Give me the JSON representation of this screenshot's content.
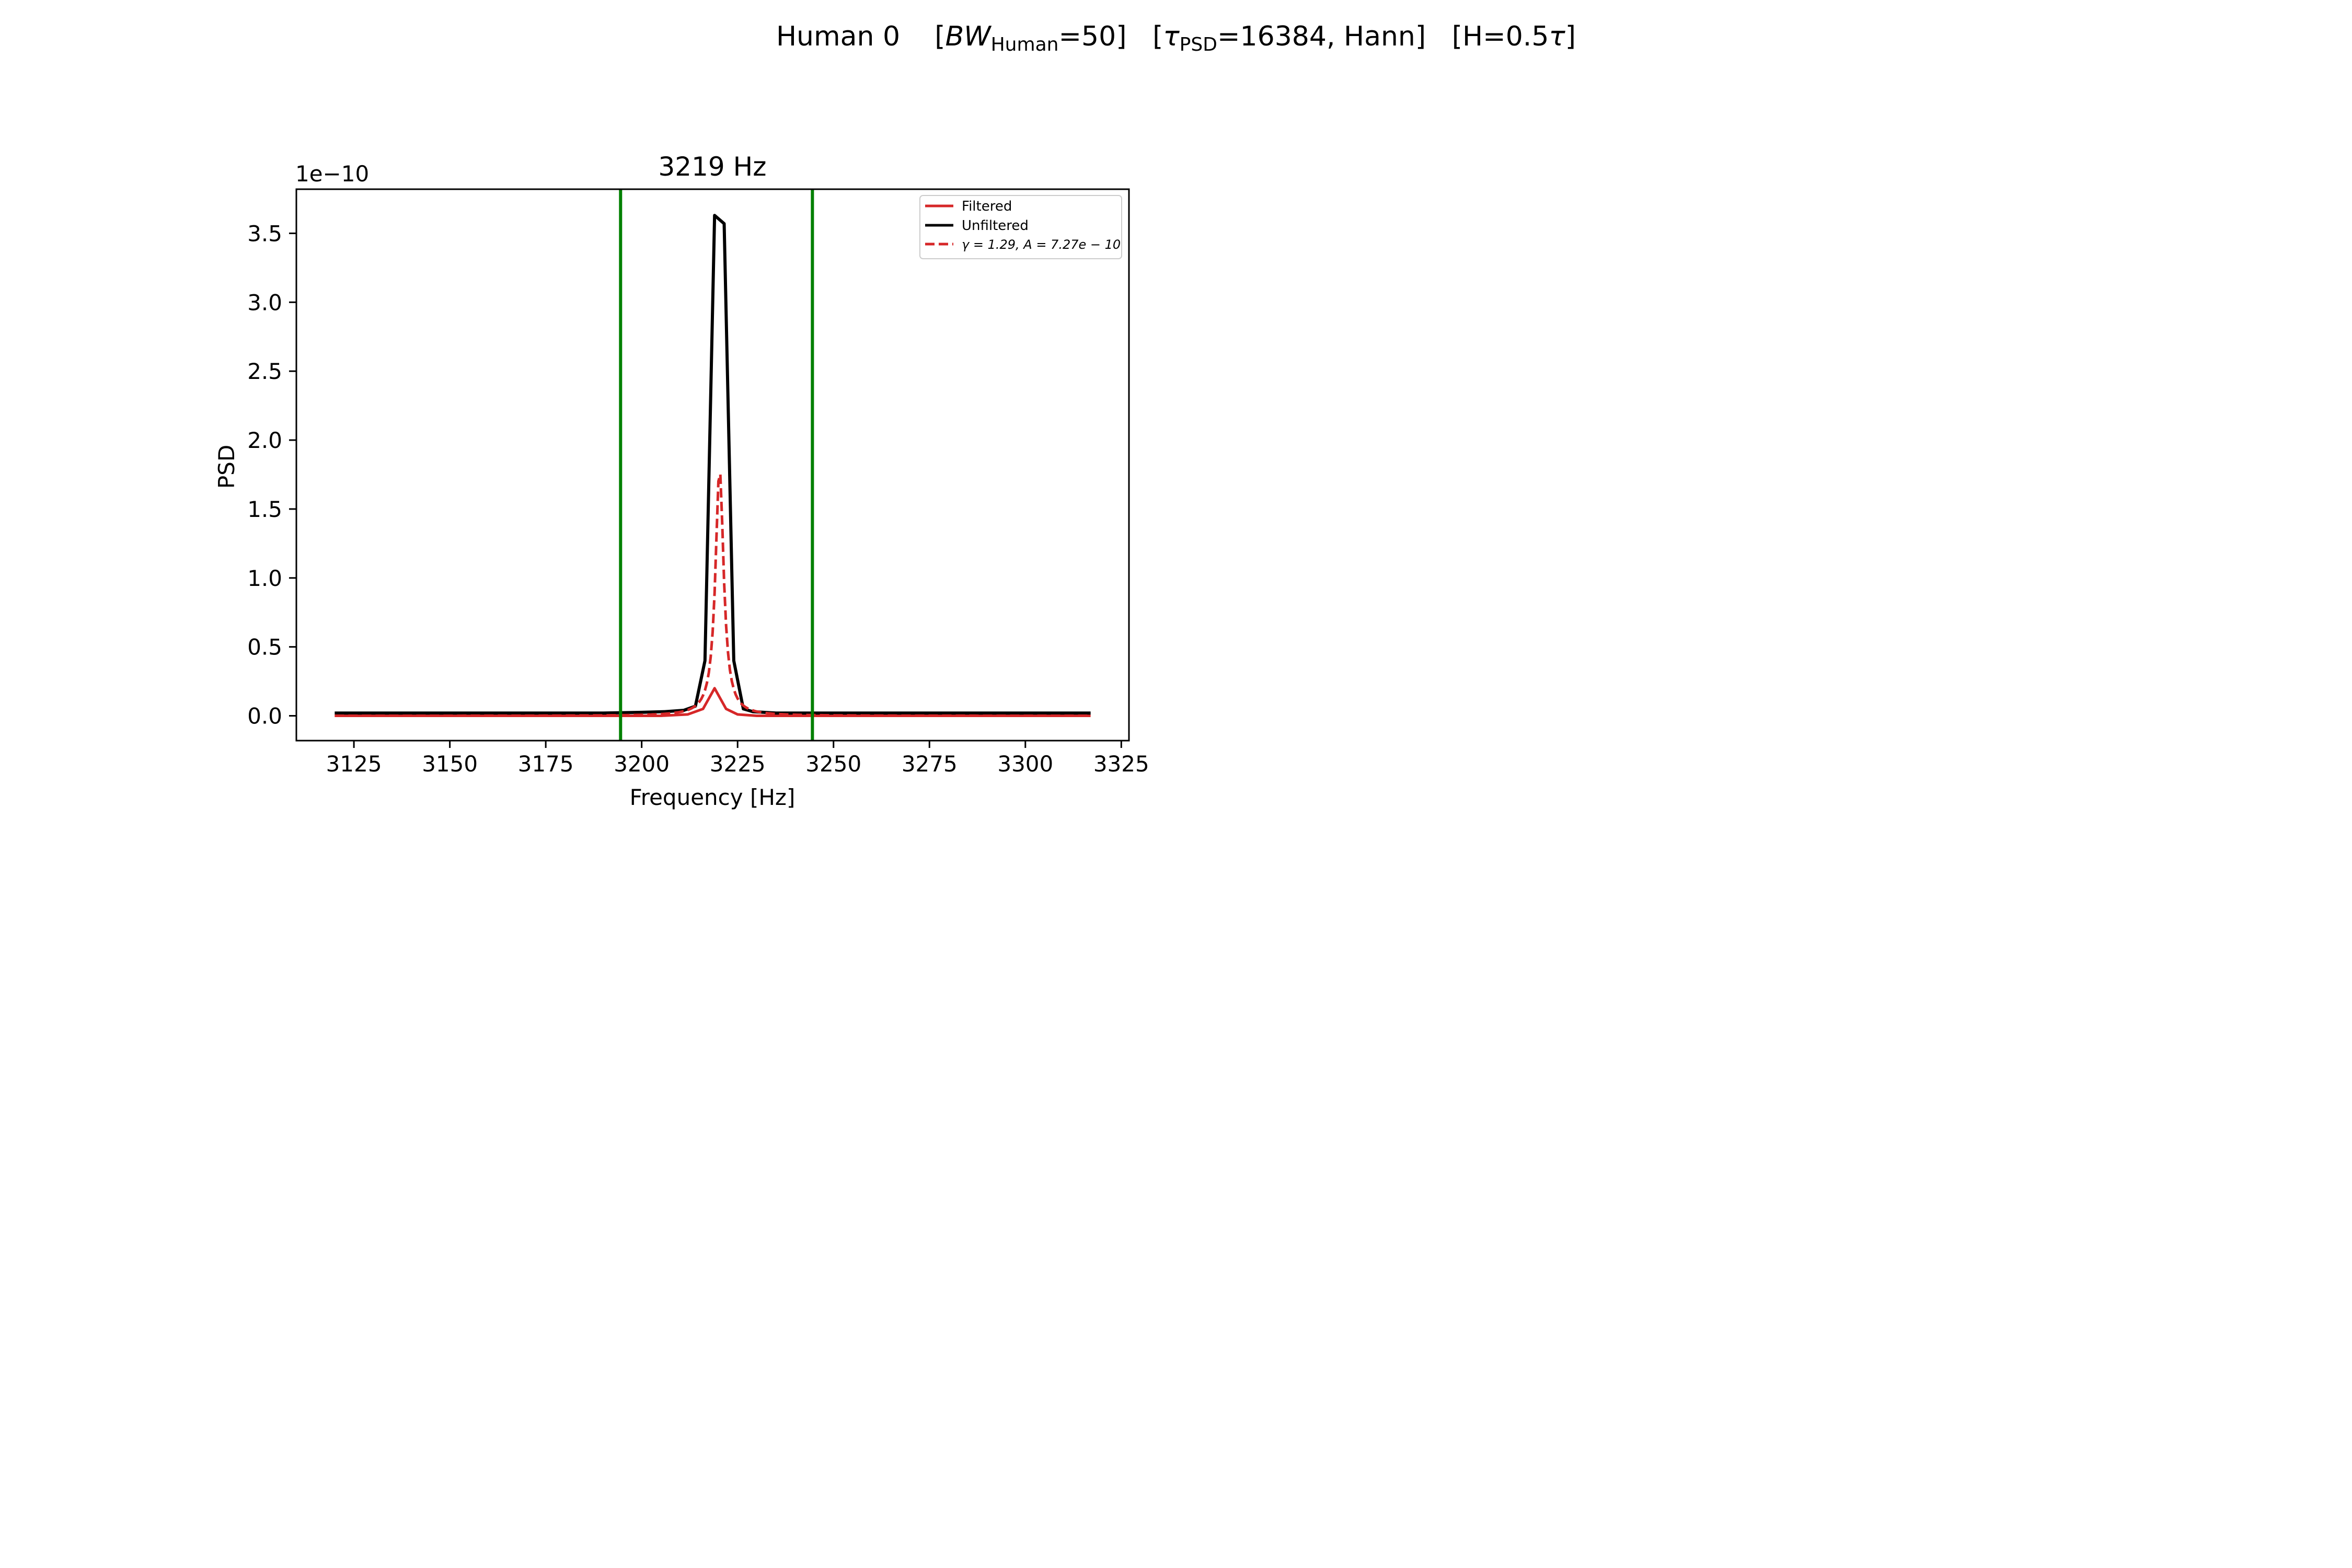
{
  "figure": {
    "title_prefix": "Human 0",
    "title_bw_var": "BW",
    "title_bw_sub": "Human",
    "title_bw_val": "=50]",
    "title_tau_var": "τ",
    "title_tau_sub": "PSD",
    "title_tau_val": "=16384, Hann]",
    "title_h": "[H=0.5",
    "title_h_tau": "τ",
    "title_h_end": "]"
  },
  "chart_data": {
    "type": "line",
    "title": "3219 Hz",
    "xlabel": "Frequency [Hz]",
    "ylabel": "PSD",
    "y_offset_label": "1e−10",
    "xlim": [
      3110,
      3327
    ],
    "ylim": [
      -0.18,
      3.82
    ],
    "xticks": [
      3125,
      3150,
      3175,
      3200,
      3225,
      3250,
      3275,
      3300,
      3325
    ],
    "yticks": [
      0.0,
      0.5,
      1.0,
      1.5,
      2.0,
      2.5,
      3.0,
      3.5
    ],
    "ytick_labels": [
      "0.0",
      "0.5",
      "1.0",
      "1.5",
      "2.0",
      "2.5",
      "3.0",
      "3.5"
    ],
    "vlines": [
      3194.5,
      3244.5
    ],
    "vline_color": "#008000",
    "legend_position": "upper right",
    "series": [
      {
        "name": "Filtered",
        "color": "#d62728",
        "style": "solid",
        "x": [
          3120,
          3140,
          3160,
          3180,
          3195,
          3205,
          3212,
          3216,
          3219,
          3222,
          3225,
          3230,
          3245,
          3270,
          3300,
          3317
        ],
        "y": [
          0.0,
          0.0,
          0.0,
          0.0,
          0.0,
          0.0,
          0.01,
          0.05,
          0.2,
          0.05,
          0.01,
          0.0,
          0.0,
          0.0,
          0.0,
          0.0
        ]
      },
      {
        "name": "Unfiltered",
        "color": "#000000",
        "style": "solid",
        "x": [
          3120,
          3130,
          3140,
          3150,
          3160,
          3170,
          3180,
          3190,
          3200,
          3206,
          3211,
          3214,
          3216.5,
          3219,
          3221.5,
          3224,
          3226.5,
          3229,
          3235,
          3245,
          3260,
          3275,
          3290,
          3305,
          3317
        ],
        "y": [
          0.02,
          0.02,
          0.02,
          0.02,
          0.02,
          0.02,
          0.02,
          0.02,
          0.025,
          0.03,
          0.04,
          0.07,
          0.4,
          3.63,
          3.57,
          0.4,
          0.05,
          0.03,
          0.02,
          0.02,
          0.02,
          0.02,
          0.02,
          0.02,
          0.02
        ]
      },
      {
        "name": "γ = 1.29, A = 7.27e−10",
        "legend_gamma": "γ = 1.29, ",
        "legend_amp": "A = 7.27e − 10",
        "color": "#d62728",
        "style": "dashed",
        "gamma": 1.29,
        "amplitude": 7.27e-10,
        "center": 3220.3,
        "baseline": 0.0,
        "x_start": 3120,
        "x_end": 3317,
        "x_step": 0.5
      }
    ]
  }
}
